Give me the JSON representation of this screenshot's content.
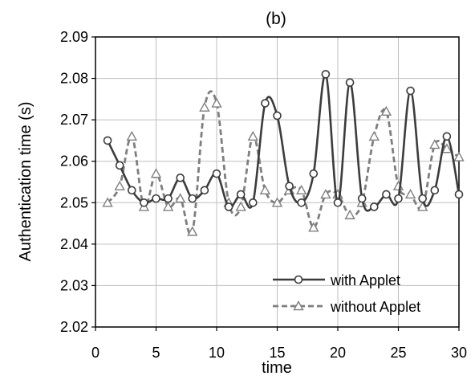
{
  "chart_data": {
    "type": "line",
    "title": "(b)",
    "xlabel": "time",
    "ylabel": "Authentication time (s)",
    "xlim": [
      0,
      30
    ],
    "ylim": [
      2.02,
      2.09
    ],
    "x_ticks": [
      "0",
      "5",
      "10",
      "15",
      "20",
      "25",
      "30"
    ],
    "y_ticks": [
      "2.02",
      "2.03",
      "2.04",
      "2.05",
      "2.06",
      "2.07",
      "2.08",
      "2.09"
    ],
    "grid": true,
    "legend_position": "bottom-right",
    "x": [
      1,
      2,
      3,
      4,
      5,
      6,
      7,
      8,
      9,
      10,
      11,
      12,
      13,
      14,
      15,
      16,
      17,
      18,
      19,
      20,
      21,
      22,
      23,
      24,
      25,
      26,
      27,
      28,
      29,
      30
    ],
    "series": [
      {
        "name": "with Applet",
        "color": "#3c3c3c",
        "line_style": "solid",
        "marker": "circle",
        "values": [
          2.065,
          2.059,
          2.053,
          2.05,
          2.051,
          2.051,
          2.056,
          2.051,
          2.053,
          2.057,
          2.049,
          2.052,
          2.05,
          2.074,
          2.071,
          2.054,
          2.05,
          2.057,
          2.081,
          2.05,
          2.079,
          2.051,
          2.049,
          2.052,
          2.051,
          2.077,
          2.051,
          2.053,
          2.066,
          2.052
        ]
      },
      {
        "name": "without Applet",
        "color": "#7f7f7f",
        "line_style": "dashed",
        "marker": "triangle",
        "values": [
          2.05,
          2.054,
          2.066,
          2.049,
          2.057,
          2.049,
          2.051,
          2.043,
          2.073,
          2.074,
          2.05,
          2.049,
          2.066,
          2.053,
          2.05,
          2.053,
          2.053,
          2.044,
          2.052,
          2.052,
          2.047,
          2.05,
          2.066,
          2.072,
          2.054,
          2.052,
          2.049,
          2.064,
          2.063,
          2.061
        ]
      }
    ]
  }
}
